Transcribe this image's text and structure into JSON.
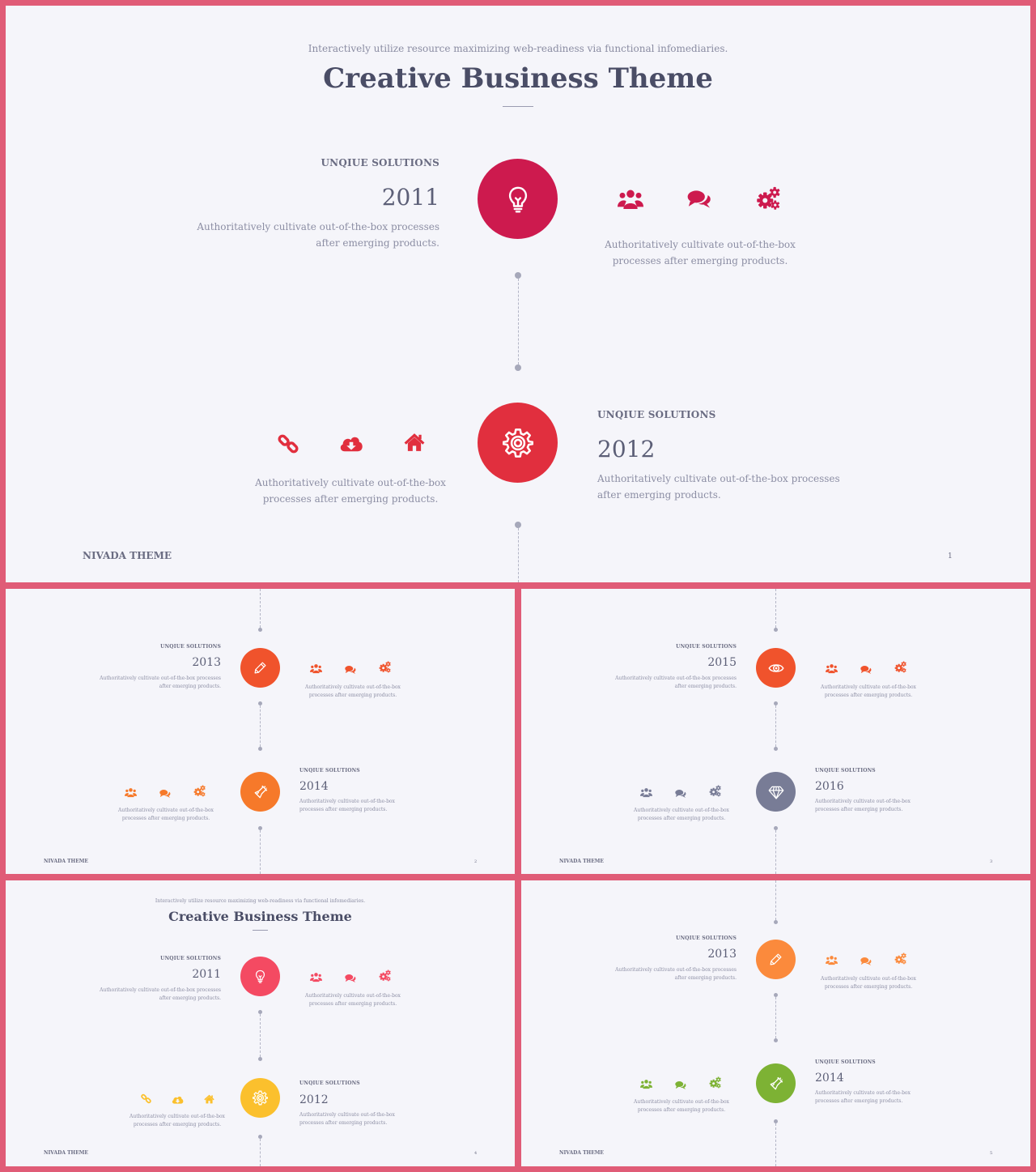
{
  "colors": {
    "frame": "#e05c77",
    "slide_bg": "#f5f5fa",
    "crimson": "#cd1a4e",
    "red": "#e12f3e",
    "orange_red": "#f0532c",
    "orange": "#f6792a",
    "slate": "#787c96",
    "pink_red": "#f44a62",
    "yellow": "#fbc02d",
    "orange2": "#fb8a3c",
    "green": "#7db234"
  },
  "slide1": {
    "subtitle": "Interactively utilize resource maximizing web-readiness via functional infomediaries.",
    "title": "Creative Business Theme",
    "item1": {
      "label": "UNQIUE SOLUTIONS",
      "year": "2011",
      "desc": "Authoritatively cultivate out-of-the-box processes after emerging products.",
      "icon": "lightbulb-icon",
      "icons": [
        "users-icon",
        "chat-icon",
        "gears-icon"
      ],
      "icons_desc": "Authoritatively cultivate out-of-the-box processes after emerging products."
    },
    "item2": {
      "label": "UNQIUE SOLUTIONS",
      "year": "2012",
      "desc": "Authoritatively cultivate out-of-the-box processes after emerging products.",
      "icon": "gear-icon",
      "icons": [
        "link-icon",
        "cloud-download-icon",
        "home-icon"
      ],
      "icons_desc": "Authoritatively cultivate out-of-the-box processes after emerging products."
    },
    "footer": "NIVADA THEME",
    "page": "1"
  },
  "slide2": {
    "item1": {
      "label": "UNQIUE SOLUTIONS",
      "year": "2013",
      "desc": "Authoritatively cultivate out-of-the-box processes after emerging products.",
      "icons_desc": "Authoritatively cultivate out-of-the-box processes after emerging products."
    },
    "item2": {
      "label": "UNQIUE SOLUTIONS",
      "year": "2014",
      "desc": "Authoritatively cultivate out-of-the-box processes after emerging products.",
      "icons_desc": "Authoritatively cultivate out-of-the-box processes after emerging products."
    },
    "footer": "NIVADA THEME",
    "page": "2"
  },
  "slide3": {
    "item1": {
      "label": "UNQIUE SOLUTIONS",
      "year": "2015",
      "desc": "Authoritatively cultivate out-of-the-box processes after emerging products.",
      "icons_desc": "Authoritatively cultivate out-of-the-box processes after emerging products."
    },
    "item2": {
      "label": "UNQIUE SOLUTIONS",
      "year": "2016",
      "desc": "Authoritatively cultivate out-of-the-box processes after emerging products.",
      "icons_desc": "Authoritatively cultivate out-of-the-box processes after emerging products."
    },
    "footer": "NIVADA THEME",
    "page": "3"
  },
  "slide4": {
    "subtitle": "Interactively utilize resource maximizing web-readiness via functional infomediaries.",
    "title": "Creative Business Theme",
    "item1": {
      "label": "UNQIUE SOLUTIONS",
      "year": "2011",
      "desc": "Authoritatively cultivate out-of-the-box processes after emerging products.",
      "icons_desc": "Authoritatively cultivate out-of-the-box processes after emerging products."
    },
    "item2": {
      "label": "UNQIUE SOLUTIONS",
      "year": "2012",
      "desc": "Authoritatively cultivate out-of-the-box processes after emerging products.",
      "icons_desc": "Authoritatively cultivate out-of-the-box processes after emerging products."
    },
    "footer": "NIVADA THEME",
    "page": "4"
  },
  "slide5": {
    "item1": {
      "label": "UNQIUE SOLUTIONS",
      "year": "2013",
      "desc": "Authoritatively cultivate out-of-the-box processes after emerging products.",
      "icons_desc": "Authoritatively cultivate out-of-the-box processes after emerging products."
    },
    "item2": {
      "label": "UNQIUE SOLUTIONS",
      "year": "2014",
      "desc": "Authoritatively cultivate out-of-the-box processes after emerging products.",
      "icons_desc": "Authoritatively cultivate out-of-the-box processes after emerging products."
    },
    "footer": "NIVADA THEME",
    "page": "5"
  }
}
